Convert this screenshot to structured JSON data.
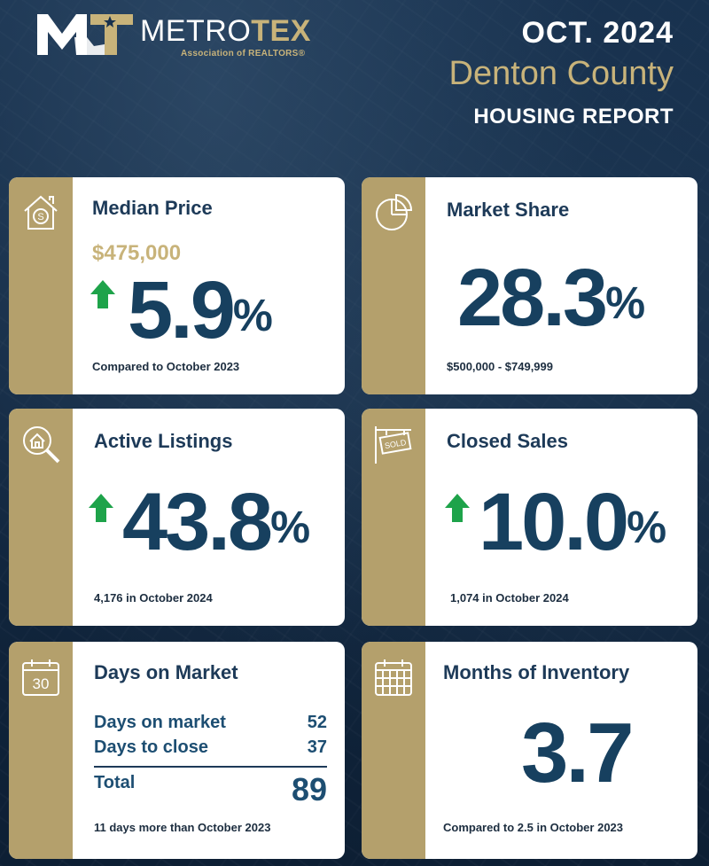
{
  "header": {
    "logo_text_left": "METRO",
    "logo_text_right": "TEX",
    "logo_subtitle": "Association of REALTORS®",
    "date": "OCT. 2024",
    "county": "Denton County",
    "report": "HOUSING REPORT"
  },
  "colors": {
    "gold": "#b4a06c",
    "navy": "#17405f",
    "up_green": "#1ea34a"
  },
  "cards": {
    "median_price": {
      "title": "Median Price",
      "icon": "house-dollar-icon",
      "price": "$475,000",
      "change": "5.9",
      "unit": "%",
      "direction": "up",
      "note": "Compared to October 2023"
    },
    "market_share": {
      "title": "Market Share",
      "icon": "pie-chart-icon",
      "value": "28.3",
      "unit": "%",
      "note": "$500,000 - $749,999"
    },
    "active_listings": {
      "title": "Active Listings",
      "icon": "house-search-icon",
      "change": "43.8",
      "unit": "%",
      "direction": "up",
      "note": "4,176 in October 2024"
    },
    "closed_sales": {
      "title": "Closed Sales",
      "icon": "sold-sign-icon",
      "sign_text": "SOLD",
      "change": "10.0",
      "unit": "%",
      "direction": "up",
      "note": "1,074 in October 2024"
    },
    "days_on_market": {
      "title": "Days on Market",
      "icon": "calendar-30-icon",
      "icon_text": "30",
      "rows": [
        {
          "label": "Days on market",
          "value": "52"
        },
        {
          "label": "Days to close",
          "value": "37"
        }
      ],
      "total_label": "Total",
      "total_value": "89",
      "note": "11 days more than October 2023"
    },
    "months_inventory": {
      "title": "Months of Inventory",
      "icon": "calendar-grid-icon",
      "value": "3.7",
      "note": "Compared to 2.5 in October 2023"
    }
  }
}
